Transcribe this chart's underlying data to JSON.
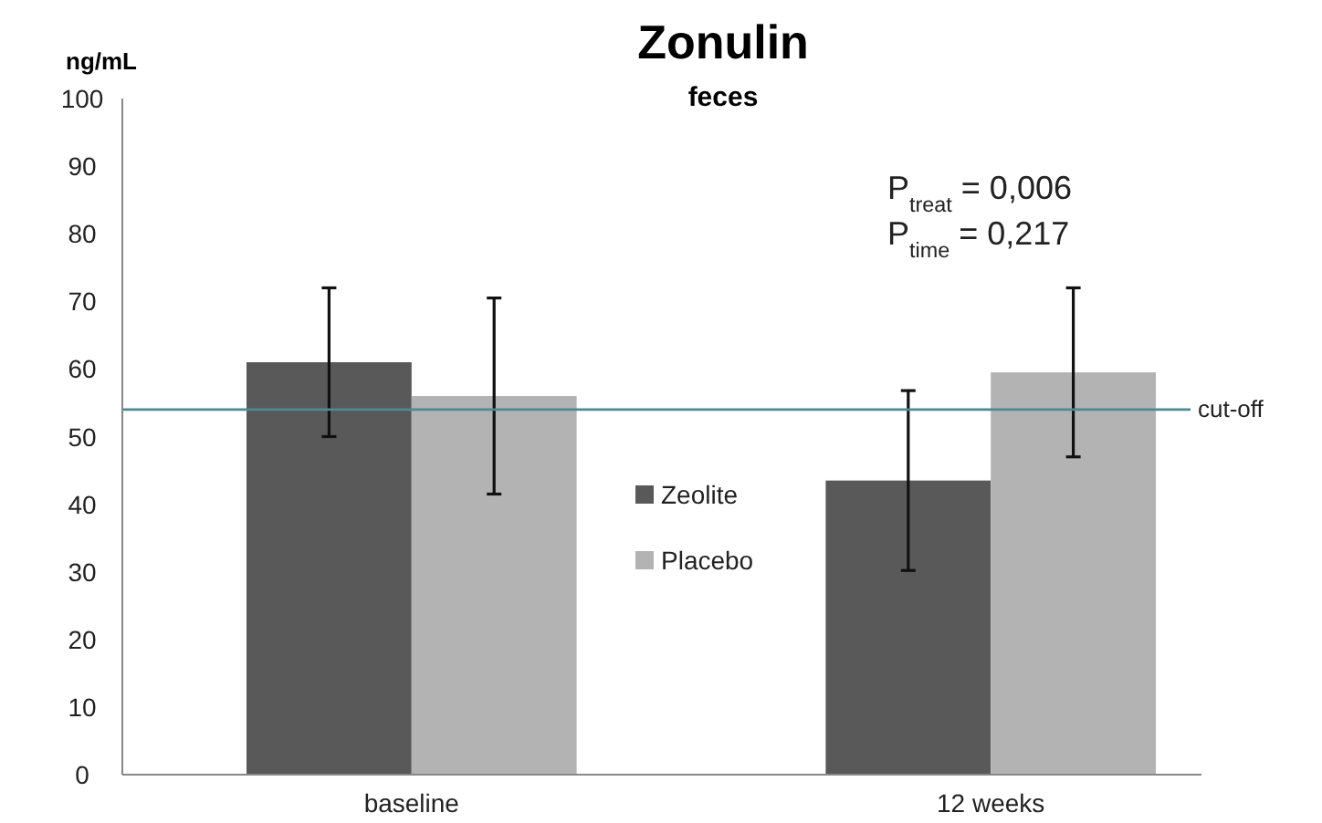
{
  "chart_data": {
    "type": "bar",
    "title": "Zonulin",
    "subtitle": "feces",
    "ylabel": "ng/mL",
    "categories": [
      "baseline",
      "12 weeks"
    ],
    "series": [
      {
        "name": "Zeolite",
        "color": "#595959",
        "values": [
          61,
          43.5
        ],
        "errors": [
          11,
          13.3
        ]
      },
      {
        "name": "Placebo",
        "color": "#b3b3b3",
        "values": [
          56,
          59.5
        ],
        "errors": [
          14.5,
          12.5
        ]
      }
    ],
    "ylim": [
      0,
      100
    ],
    "yticks": [
      0,
      10,
      20,
      30,
      40,
      50,
      60,
      70,
      80,
      90,
      100
    ],
    "grid": false,
    "legend": "center",
    "ref_lines": [
      {
        "axis": "y",
        "value": 54,
        "label": "cut-off",
        "color": "#4a8a9a"
      }
    ],
    "annotations": [
      "P$_{treat}$ = 0,006",
      "P$_{time}$ = 0,217"
    ]
  }
}
